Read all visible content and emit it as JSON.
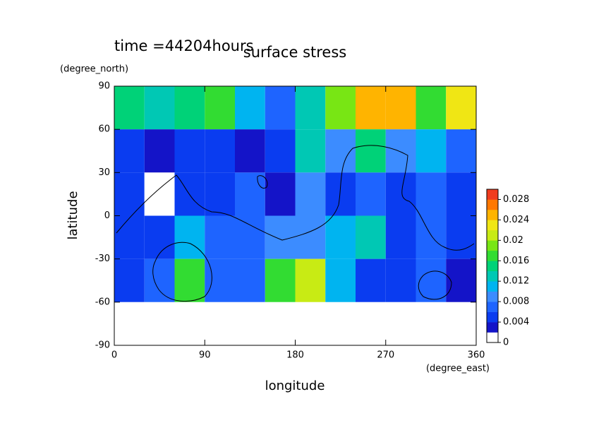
{
  "chart_data": {
    "type": "heatmap",
    "title": "surface stress",
    "subtitle": "time =44204hours",
    "x_label": "longitude",
    "x_unit": "(degree_east)",
    "y_label": "latitude",
    "y_unit": "(degree_north)",
    "x": [
      0,
      30,
      60,
      90,
      120,
      150,
      180,
      210,
      240,
      270,
      300,
      330,
      360
    ],
    "y": [
      90,
      60,
      30,
      0,
      -30,
      -60,
      -90
    ],
    "z": [
      [
        0.014,
        0.012,
        0.014,
        0.016,
        0.01,
        0.006,
        0.012,
        0.018,
        0.024,
        0.024,
        0.016,
        0.022
      ],
      [
        0.004,
        0.002,
        0.004,
        0.004,
        0.003,
        0.004,
        0.012,
        0.008,
        0.014,
        0.008,
        0.01,
        0.006
      ],
      [
        0.004,
        0.001,
        0.004,
        0.004,
        0.006,
        0.003,
        0.008,
        0.004,
        0.006,
        0.004,
        0.006,
        0.004
      ],
      [
        0.004,
        0.004,
        0.01,
        0.006,
        0.006,
        0.008,
        0.008,
        0.01,
        0.012,
        0.004,
        0.006,
        0.004
      ],
      [
        0.004,
        0.006,
        0.016,
        0.006,
        0.006,
        0.016,
        0.02,
        0.01,
        0.004,
        0.004,
        0.006,
        0.002
      ],
      [
        0,
        0,
        0,
        0,
        0,
        0,
        0,
        0,
        0,
        0,
        0,
        0
      ]
    ],
    "xlim": [
      0,
      360
    ],
    "xticks": [
      0,
      90,
      180,
      270,
      360
    ],
    "ylim": [
      -90,
      90
    ],
    "yticks": [
      -90,
      -60,
      -30,
      0,
      30,
      60,
      90
    ],
    "clim": [
      0,
      0.03
    ],
    "cticks": [
      0,
      0.004,
      0.008,
      0.012,
      0.016,
      0.02,
      0.024,
      0.028
    ],
    "colors": [
      "#ffffff",
      "#1414c8",
      "#0a3cf0",
      "#1e64ff",
      "#3c8cff",
      "#00b4f0",
      "#00c8b4",
      "#00d278",
      "#32dc32",
      "#78e614",
      "#c8eb14",
      "#f0e614",
      "#ffb400",
      "#ff7800",
      "#f03c1e"
    ]
  }
}
